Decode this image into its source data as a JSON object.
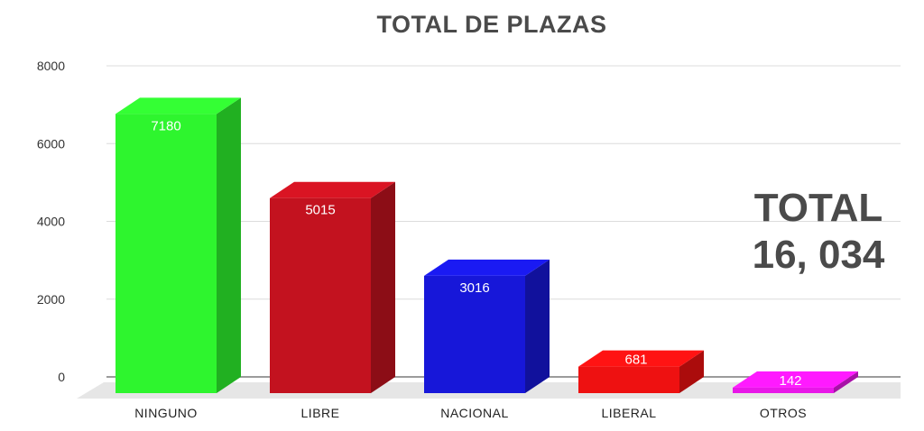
{
  "chart_data": {
    "type": "bar",
    "title": "TOTAL DE PLAZAS",
    "categories": [
      "NINGUNO",
      "LIBRE",
      "NACIONAL",
      "LIBERAL",
      "OTROS"
    ],
    "values": [
      7180,
      5015,
      3016,
      681,
      142
    ],
    "data_labels": [
      "7180",
      "5015",
      "3016",
      "681",
      "142"
    ],
    "colors": [
      "#2ef52e",
      "#c3121f",
      "#1717d9",
      "#ee1111",
      "#e817e8"
    ],
    "yticks": [
      "0",
      "2000",
      "4000",
      "6000",
      "8000"
    ],
    "ylim": [
      0,
      8000
    ],
    "grid": true,
    "legend": "none",
    "style": "3d"
  },
  "annotation": {
    "line1": "TOTAL",
    "line2": "16, 034"
  }
}
